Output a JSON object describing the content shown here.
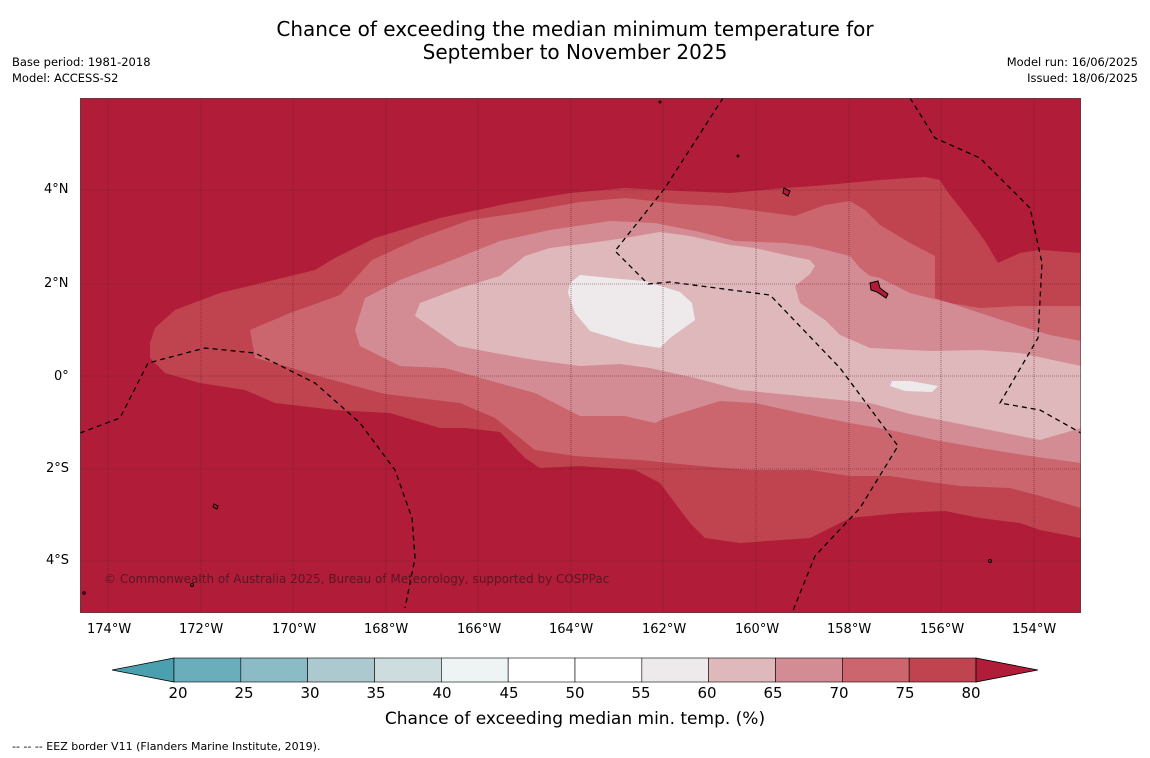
{
  "title": {
    "line1": "Chance of exceeding the median minimum temperature for",
    "line2": "September to November 2025"
  },
  "meta_left": {
    "base_period": "Base period: 1981-2018",
    "model": "Model: ACCESS-S2"
  },
  "meta_right": {
    "model_run": "Model run: 16/06/2025",
    "issued": "Issued: 18/06/2025"
  },
  "map": {
    "lon_ticks": [
      "174°W",
      "172°W",
      "170°W",
      "168°W",
      "166°W",
      "164°W",
      "162°W",
      "160°W",
      "158°W",
      "156°W",
      "154°W"
    ],
    "lat_ticks": [
      "4°N",
      "2°N",
      "0°",
      "2°S",
      "4°S"
    ],
    "copyright": "© Commonwealth of Australia 2025, Bureau of Meteorology, supported by COSPPac",
    "colors": {
      "above_80": "#b11d38",
      "75_80": "#c0444f",
      "70_75": "#cb666f",
      "65_70": "#d48c94",
      "60_65": "#dfb8bc",
      "55_60": "#eeeaeb"
    }
  },
  "colorbar": {
    "labels": [
      "20",
      "25",
      "30",
      "35",
      "40",
      "45",
      "50",
      "55",
      "60",
      "65",
      "70",
      "75",
      "80"
    ],
    "colors": [
      "#4ba0b0",
      "#6aaebc",
      "#8bbcc6",
      "#abc9ce",
      "#cddcdf",
      "#eef4f4",
      "#ffffff",
      "#ffffff",
      "#eeeaeb",
      "#dfb8bc",
      "#d48c94",
      "#cb666f",
      "#c0444f",
      "#b11d38"
    ],
    "title": "Chance of exceeding median min. temp. (%)"
  },
  "footnote": "--  --  -- EEZ border V11 (Flanders Marine Institute, 2019)."
}
